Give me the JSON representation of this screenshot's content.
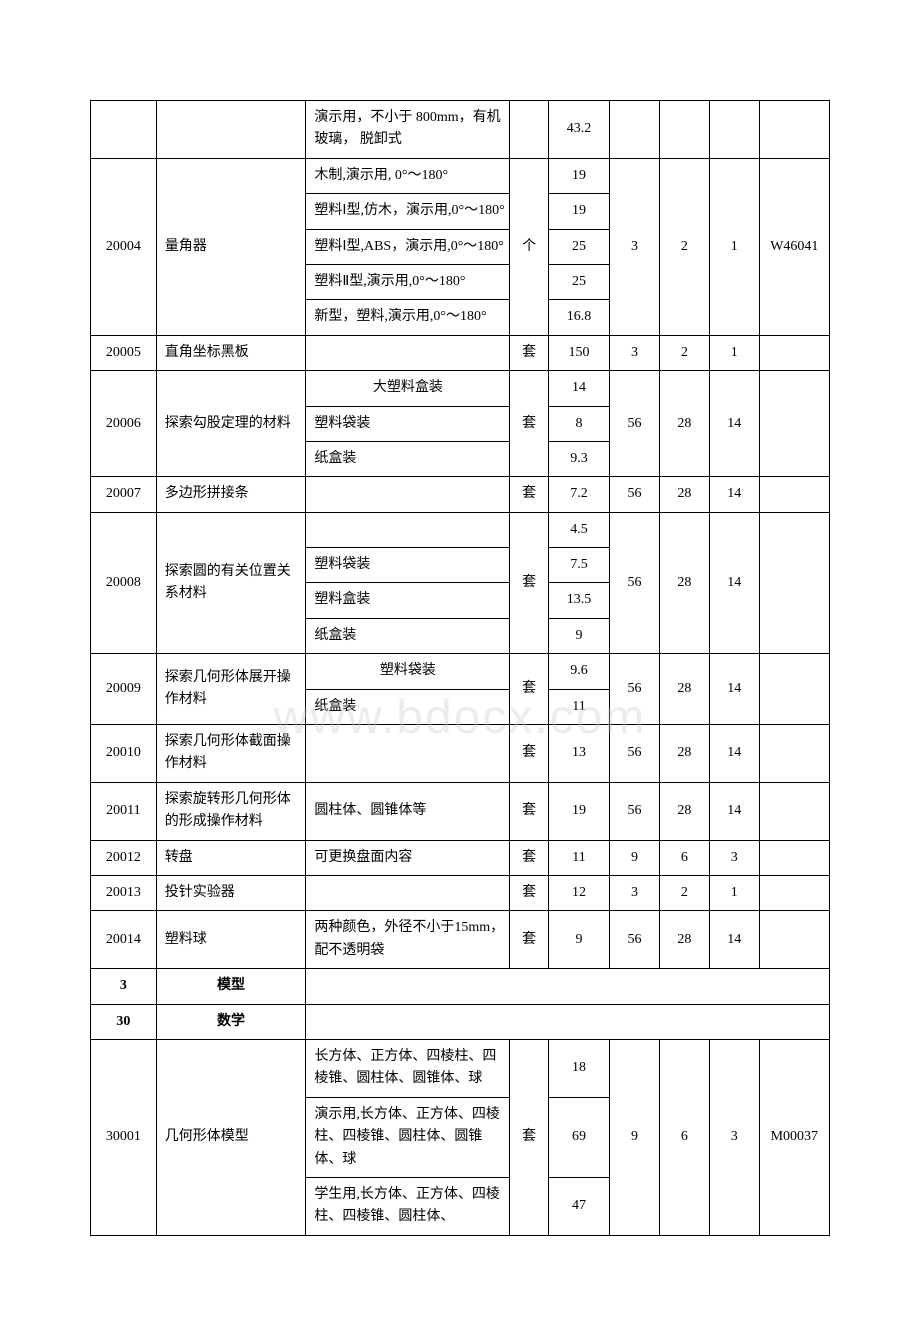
{
  "watermark": "www.bdocx.com",
  "rows": [
    {
      "type": "row",
      "code": "",
      "name": "",
      "specs": [
        {
          "t": "演示用，不小于 800mm，有机玻璃， 脱卸式",
          "p": "43.2"
        }
      ],
      "unit": "",
      "q1": "",
      "q2": "",
      "q3": "",
      "ref": ""
    },
    {
      "type": "row",
      "code": "20004",
      "name": "量角器",
      "specs": [
        {
          "t": "木制,演示用, 0°～180°",
          "p": "19"
        },
        {
          "t": "塑料Ⅰ型,仿木，演示用,0°～180°",
          "p": "19"
        },
        {
          "t": "塑料Ⅰ型,ABS，演示用,0°～180°",
          "p": "25"
        },
        {
          "t": "塑料Ⅱ型,演示用,0°～180°",
          "p": "25"
        },
        {
          "t": "新型，塑料,演示用,0°～180°",
          "p": "16.8"
        }
      ],
      "unit": "个",
      "q1": "3",
      "q2": "2",
      "q3": "1",
      "ref": "W46041"
    },
    {
      "type": "row",
      "code": "20005",
      "name": "直角坐标黑板",
      "specs": [
        {
          "t": "",
          "p": "150"
        }
      ],
      "unit": "套",
      "q1": "3",
      "q2": "2",
      "q3": "1",
      "ref": ""
    },
    {
      "type": "row",
      "code": "20006",
      "name": "探索勾股定理的材料",
      "specs": [
        {
          "t": "大塑料盒装",
          "p": "14",
          "center": true
        },
        {
          "t": "塑料袋装",
          "p": "8"
        },
        {
          "t": "纸盒装",
          "p": "9.3"
        }
      ],
      "unit": "套",
      "q1": "56",
      "q2": "28",
      "q3": "14",
      "ref": ""
    },
    {
      "type": "row",
      "code": "20007",
      "name": "多边形拼接条",
      "specs": [
        {
          "t": "",
          "p": "7.2"
        }
      ],
      "unit": "套",
      "q1": "56",
      "q2": "28",
      "q3": "14",
      "ref": ""
    },
    {
      "type": "row",
      "code": "20008",
      "name": "探索圆的有关位置关系材料",
      "specs": [
        {
          "t": "",
          "p": "4.5"
        },
        {
          "t": "塑料袋装",
          "p": "7.5"
        },
        {
          "t": "塑料盒装",
          "p": "13.5"
        },
        {
          "t": "纸盒装",
          "p": "9"
        }
      ],
      "unit": "套",
      "q1": "56",
      "q2": "28",
      "q3": "14",
      "ref": ""
    },
    {
      "type": "row",
      "code": "20009",
      "name": "探索几何形体展开操作材料",
      "specs": [
        {
          "t": "塑料袋装",
          "p": "9.6",
          "center": true
        },
        {
          "t": "纸盒装",
          "p": "11"
        }
      ],
      "unit": "套",
      "q1": "56",
      "q2": "28",
      "q3": "14",
      "ref": ""
    },
    {
      "type": "row",
      "code": "20010",
      "name": "探索几何形体截面操作材料",
      "specs": [
        {
          "t": "",
          "p": "13"
        }
      ],
      "unit": "套",
      "q1": "56",
      "q2": "28",
      "q3": "14",
      "ref": ""
    },
    {
      "type": "row",
      "code": "20011",
      "name": "探索旋转形几何形体的形成操作材料",
      "specs": [
        {
          "t": "圆柱体、圆锥体等",
          "p": "19"
        }
      ],
      "unit": "套",
      "q1": "56",
      "q2": "28",
      "q3": "14",
      "ref": ""
    },
    {
      "type": "row",
      "code": "20012",
      "name": "转盘",
      "specs": [
        {
          "t": "可更换盘面内容",
          "p": "11"
        }
      ],
      "unit": "套",
      "q1": "9",
      "q2": "6",
      "q3": "3",
      "ref": ""
    },
    {
      "type": "row",
      "code": "20013",
      "name": "投针实验器",
      "specs": [
        {
          "t": "",
          "p": "12"
        }
      ],
      "unit": "套",
      "q1": "3",
      "q2": "2",
      "q3": "1",
      "ref": ""
    },
    {
      "type": "row",
      "code": "20014",
      "name": "塑料球",
      "specs": [
        {
          "t": "两种颜色，外径不小于15mm，配不透明袋",
          "p": "9"
        }
      ],
      "unit": "套",
      "q1": "56",
      "q2": "28",
      "q3": "14",
      "ref": ""
    },
    {
      "type": "header",
      "code": "3",
      "name": "模型"
    },
    {
      "type": "header",
      "code": "30",
      "name": "数学"
    },
    {
      "type": "row",
      "code": "30001",
      "name": "几何形体模型",
      "specs": [
        {
          "t": "长方体、正方体、四棱柱、四棱锥、圆柱体、圆锥体、球",
          "p": "18"
        },
        {
          "t": "演示用,长方体、正方体、四棱柱、四棱锥、圆柱体、圆锥体、球",
          "p": "69"
        },
        {
          "t": "学生用,长方体、正方体、四棱柱、四棱锥、圆柱体、",
          "p": "47"
        }
      ],
      "unit": "套",
      "q1": "9",
      "q2": "6",
      "q3": "3",
      "ref": "M00037"
    }
  ]
}
